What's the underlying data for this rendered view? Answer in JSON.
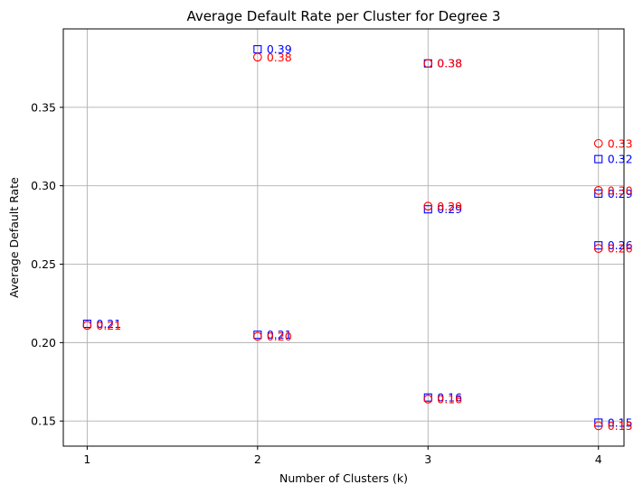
{
  "chart_data": {
    "type": "scatter",
    "title": "Average Default Rate per Cluster for Degree 3",
    "xlabel": "Number of Clusters (k)",
    "ylabel": "Average Default Rate",
    "x_ticks": [
      1,
      2,
      3,
      4
    ],
    "y_ticks": [
      "0.15",
      "0.20",
      "0.25",
      "0.30",
      "0.35"
    ],
    "xlim": [
      0.86,
      4.15
    ],
    "ylim": [
      0.134,
      0.4
    ],
    "grid": true,
    "series": [
      {
        "marker": "square",
        "color": "#0000ff",
        "points": [
          {
            "x": 1,
            "y": 0.212,
            "label": "0.21"
          },
          {
            "x": 2,
            "y": 0.387,
            "label": "0.39"
          },
          {
            "x": 2,
            "y": 0.205,
            "label": "0.21"
          },
          {
            "x": 3,
            "y": 0.378,
            "label": "0.38"
          },
          {
            "x": 3,
            "y": 0.285,
            "label": "0.29"
          },
          {
            "x": 3,
            "y": 0.165,
            "label": "0.16"
          },
          {
            "x": 4,
            "y": 0.317,
            "label": "0.32"
          },
          {
            "x": 4,
            "y": 0.295,
            "label": "0.29"
          },
          {
            "x": 4,
            "y": 0.262,
            "label": "0.26"
          },
          {
            "x": 4,
            "y": 0.149,
            "label": "0.15"
          }
        ]
      },
      {
        "marker": "circle",
        "color": "#ff0000",
        "points": [
          {
            "x": 1,
            "y": 0.211,
            "label": "0.21"
          },
          {
            "x": 2,
            "y": 0.382,
            "label": "0.38"
          },
          {
            "x": 2,
            "y": 0.204,
            "label": "0.20"
          },
          {
            "x": 3,
            "y": 0.378,
            "label": "0.38"
          },
          {
            "x": 3,
            "y": 0.287,
            "label": "0.29"
          },
          {
            "x": 3,
            "y": 0.164,
            "label": "0.16"
          },
          {
            "x": 4,
            "y": 0.327,
            "label": "0.33"
          },
          {
            "x": 4,
            "y": 0.297,
            "label": "0.30"
          },
          {
            "x": 4,
            "y": 0.26,
            "label": "0.26"
          },
          {
            "x": 4,
            "y": 0.147,
            "label": "0.15"
          }
        ]
      }
    ]
  }
}
